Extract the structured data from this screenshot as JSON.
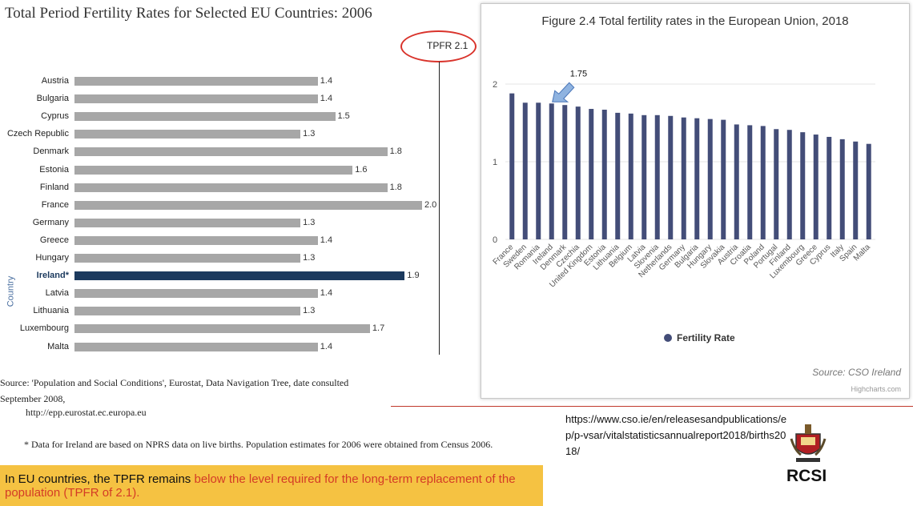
{
  "chart_data": [
    {
      "type": "bar",
      "orientation": "horizontal",
      "title": "Total Period Fertility Rates for Selected EU Countries: 2006",
      "ylabel": "Country",
      "reference_line": {
        "label": "TPFR 2.1",
        "value": 2.1
      },
      "categories": [
        "Austria",
        "Bulgaria",
        "Cyprus",
        "Czech Republic",
        "Denmark",
        "Estonia",
        "Finland",
        "France",
        "Germany",
        "Greece",
        "Hungary",
        "Ireland*",
        "Latvia",
        "Lithuania",
        "Luxembourg",
        "Malta"
      ],
      "values": [
        1.4,
        1.4,
        1.5,
        1.3,
        1.8,
        1.6,
        1.8,
        2.0,
        1.3,
        1.4,
        1.3,
        1.9,
        1.4,
        1.3,
        1.7,
        1.4
      ],
      "value_labels": [
        "1.4",
        "1.4",
        "1.5",
        "1.3",
        "1.8",
        "1.6",
        "1.8",
        "2.0",
        "1.3",
        "1.4",
        "1.3",
        "1.9",
        "1.4",
        "1.3",
        "1.7",
        "1.4"
      ],
      "highlight": "Ireland*"
    },
    {
      "type": "bar",
      "title": "Figure 2.4 Total fertility rates in the European Union, 2018",
      "legend": "Fertility Rate",
      "ylim": [
        0,
        2
      ],
      "yticks": [
        "0",
        "1",
        "2"
      ],
      "annotation": {
        "text": "1.75",
        "category": "Ireland"
      },
      "credits": "Highcharts.com",
      "source": "Source: CSO Ireland",
      "categories": [
        "France",
        "Sweden",
        "Romania",
        "Ireland",
        "Denmark",
        "Czechia",
        "United Kingdom",
        "Estonia",
        "Lithuania",
        "Belgium",
        "Latvia",
        "Slovenia",
        "Netherlands",
        "Germany",
        "Bulgaria",
        "Hungary",
        "Slovakia",
        "Austria",
        "Croatia",
        "Poland",
        "Portugal",
        "Finland",
        "Luxembourg",
        "Greece",
        "Cyprus",
        "Italy",
        "Spain",
        "Malta"
      ],
      "values": [
        1.88,
        1.76,
        1.76,
        1.75,
        1.73,
        1.71,
        1.68,
        1.67,
        1.63,
        1.62,
        1.6,
        1.6,
        1.59,
        1.57,
        1.56,
        1.55,
        1.54,
        1.48,
        1.47,
        1.46,
        1.42,
        1.41,
        1.38,
        1.35,
        1.32,
        1.29,
        1.26,
        1.23
      ]
    }
  ],
  "colors": {
    "highlight": "#1c3a5e",
    "bars": "#a7a7a7",
    "right_bars": "#434d78",
    "accent_red": "#d9332b",
    "caption_bg": "#f5c242"
  },
  "source": {
    "note": "Source: 'Population and Social Conditions', Eurostat, Data Navigation Tree, date consulted September 2008,",
    "url": "http://epp.eurostat.ec.europa.eu",
    "footnote": "* Data for Ireland are based on NPRS data on live births. Population estimates for 2006 were obtained from Census 2006."
  },
  "caption": {
    "prefix": "In EU countries, the TPFR remains ",
    "highlight": "below the level required for the long-term replacement of the population (TPFR of 2.1)."
  },
  "reference_url": "https://www.cso.ie/en/releasesandpublications/ep/p-vsar/vitalstatisticsannualreport2018/births2018/",
  "logo_text": "RCSI"
}
